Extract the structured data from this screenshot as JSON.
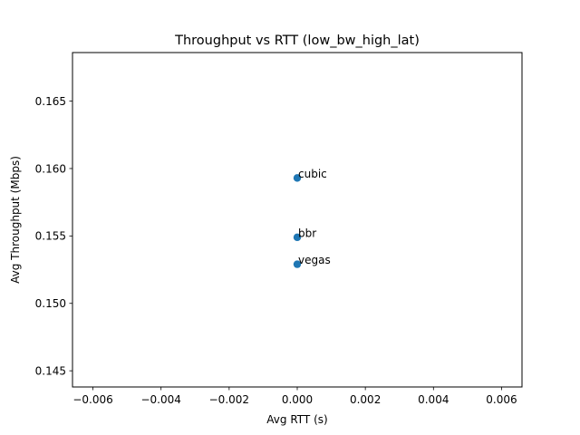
{
  "chart_data": {
    "type": "scatter",
    "title": "Throughput vs RTT (low_bw_high_lat)",
    "xlabel": "Avg RTT (s)",
    "ylabel": "Avg Throughput (Mbps)",
    "xlim": [
      -0.0066,
      0.0066
    ],
    "ylim": [
      0.1438,
      0.1686
    ],
    "x_ticks": [
      {
        "value": -0.006,
        "label": "−0.006"
      },
      {
        "value": -0.004,
        "label": "−0.004"
      },
      {
        "value": -0.002,
        "label": "−0.002"
      },
      {
        "value": 0.0,
        "label": "0.000"
      },
      {
        "value": 0.002,
        "label": "0.002"
      },
      {
        "value": 0.004,
        "label": "0.004"
      },
      {
        "value": 0.006,
        "label": "0.006"
      }
    ],
    "y_ticks": [
      {
        "value": 0.145,
        "label": "0.145"
      },
      {
        "value": 0.15,
        "label": "0.150"
      },
      {
        "value": 0.155,
        "label": "0.155"
      },
      {
        "value": 0.16,
        "label": "0.160"
      },
      {
        "value": 0.165,
        "label": "0.165"
      }
    ],
    "grid": false,
    "points": [
      {
        "label": "cubic",
        "x": 0.0,
        "y": 0.1593
      },
      {
        "label": "bbr",
        "x": 0.0,
        "y": 0.1549
      },
      {
        "label": "vegas",
        "x": 0.0,
        "y": 0.1529
      }
    ],
    "marker_color": "#1f77b4"
  }
}
